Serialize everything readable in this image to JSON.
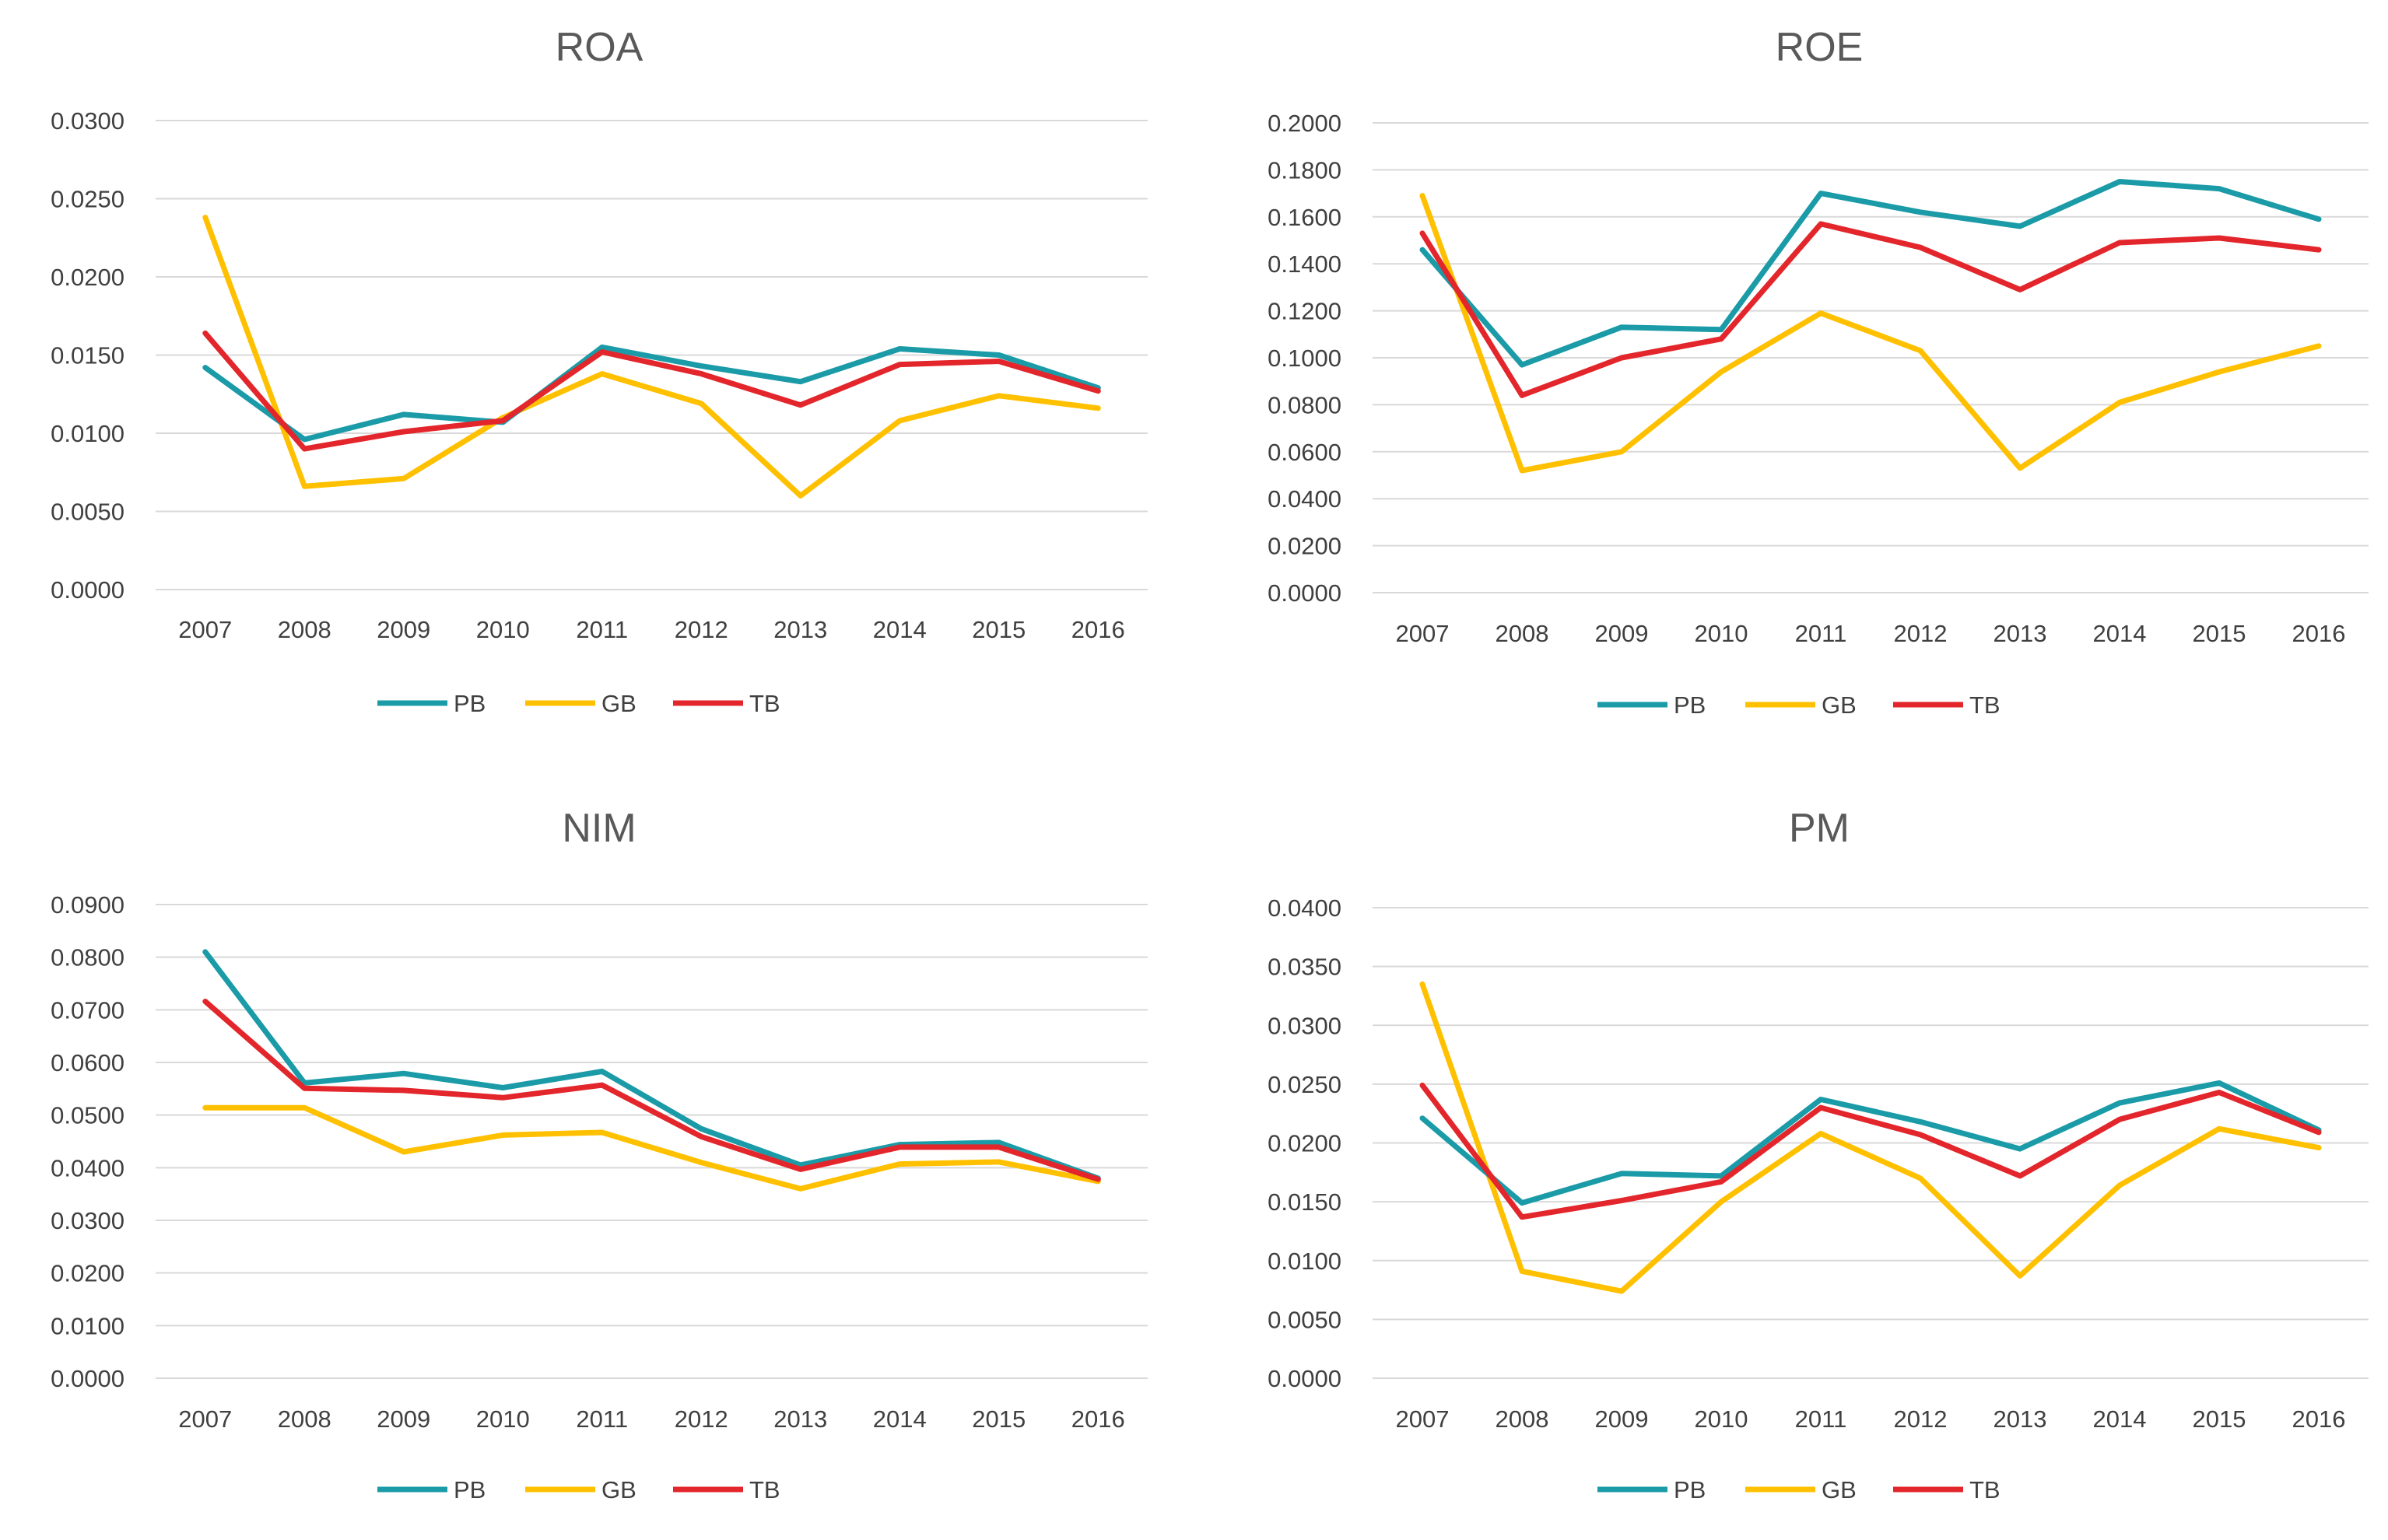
{
  "series_colors": {
    "PB": "#1a9ba7",
    "GB": "#ffc000",
    "TB": "#e3262b"
  },
  "chart_data": [
    {
      "id": "roa",
      "type": "line",
      "title": "ROA",
      "categories": [
        "2007",
        "2008",
        "2009",
        "2010",
        "2011",
        "2012",
        "2013",
        "2014",
        "2015",
        "2016"
      ],
      "ylim": [
        0,
        0.03
      ],
      "yticks": [
        "0.0000",
        "0.0050",
        "0.0100",
        "0.0150",
        "0.0200",
        "0.0250",
        "0.0300"
      ],
      "grid": true,
      "legend": "bottom",
      "series": [
        {
          "name": "PB",
          "values": [
            0.0142,
            0.0096,
            0.0112,
            0.0107,
            0.0155,
            0.0143,
            0.0133,
            0.0154,
            0.015,
            0.0129
          ]
        },
        {
          "name": "GB",
          "values": [
            0.0238,
            0.0066,
            0.0071,
            0.011,
            0.0138,
            0.0119,
            0.006,
            0.0108,
            0.0124,
            0.0116
          ]
        },
        {
          "name": "TB",
          "values": [
            0.0164,
            0.009,
            0.0101,
            0.0108,
            0.0152,
            0.0138,
            0.0118,
            0.0144,
            0.0146,
            0.0127
          ]
        }
      ]
    },
    {
      "id": "roe",
      "type": "line",
      "title": "ROE",
      "categories": [
        "2007",
        "2008",
        "2009",
        "2010",
        "2011",
        "2012",
        "2013",
        "2014",
        "2015",
        "2016"
      ],
      "ylim": [
        0,
        0.2
      ],
      "yticks": [
        "0.0000",
        "0.0200",
        "0.0400",
        "0.0600",
        "0.0800",
        "0.1000",
        "0.1200",
        "0.1400",
        "0.1600",
        "0.1800",
        "0.2000"
      ],
      "grid": true,
      "legend": "bottom",
      "series": [
        {
          "name": "PB",
          "values": [
            0.146,
            0.097,
            0.113,
            0.112,
            0.17,
            0.162,
            0.156,
            0.175,
            0.172,
            0.159
          ]
        },
        {
          "name": "GB",
          "values": [
            0.169,
            0.052,
            0.06,
            0.094,
            0.119,
            0.103,
            0.053,
            0.081,
            0.094,
            0.105
          ]
        },
        {
          "name": "TB",
          "values": [
            0.153,
            0.084,
            0.1,
            0.108,
            0.157,
            0.147,
            0.129,
            0.149,
            0.151,
            0.146
          ]
        }
      ]
    },
    {
      "id": "nim",
      "type": "line",
      "title": "NIM",
      "categories": [
        "2007",
        "2008",
        "2009",
        "2010",
        "2011",
        "2012",
        "2013",
        "2014",
        "2015",
        "2016"
      ],
      "ylim": [
        0,
        0.09
      ],
      "yticks": [
        "0.0000",
        "0.0100",
        "0.0200",
        "0.0300",
        "0.0400",
        "0.0500",
        "0.0600",
        "0.0700",
        "0.0800",
        "0.0900"
      ],
      "grid": true,
      "legend": "bottom",
      "series": [
        {
          "name": "PB",
          "values": [
            0.081,
            0.0561,
            0.0579,
            0.0552,
            0.0583,
            0.0474,
            0.0405,
            0.0444,
            0.0448,
            0.038
          ]
        },
        {
          "name": "GB",
          "values": [
            0.0514,
            0.0514,
            0.043,
            0.0462,
            0.0467,
            0.041,
            0.036,
            0.0407,
            0.0411,
            0.0374
          ]
        },
        {
          "name": "TB",
          "values": [
            0.0716,
            0.0551,
            0.0547,
            0.0533,
            0.0557,
            0.0459,
            0.0397,
            0.0439,
            0.0439,
            0.0378
          ]
        }
      ]
    },
    {
      "id": "pm",
      "type": "line",
      "title": "PM",
      "categories": [
        "2007",
        "2008",
        "2009",
        "2010",
        "2011",
        "2012",
        "2013",
        "2014",
        "2015",
        "2016"
      ],
      "ylim": [
        0,
        0.04
      ],
      "yticks": [
        "0.0000",
        "0.0050",
        "0.0100",
        "0.0150",
        "0.0200",
        "0.0250",
        "0.0300",
        "0.0350",
        "0.0400"
      ],
      "grid": true,
      "legend": "bottom",
      "series": [
        {
          "name": "PB",
          "values": [
            0.0221,
            0.0149,
            0.0174,
            0.0172,
            0.0237,
            0.0218,
            0.0195,
            0.0234,
            0.0251,
            0.0211
          ]
        },
        {
          "name": "GB",
          "values": [
            0.0335,
            0.0091,
            0.0074,
            0.015,
            0.0208,
            0.017,
            0.0087,
            0.0164,
            0.0212,
            0.0196
          ]
        },
        {
          "name": "TB",
          "values": [
            0.0249,
            0.0137,
            0.0151,
            0.0167,
            0.023,
            0.0207,
            0.0172,
            0.022,
            0.0243,
            0.0209
          ]
        }
      ]
    }
  ]
}
